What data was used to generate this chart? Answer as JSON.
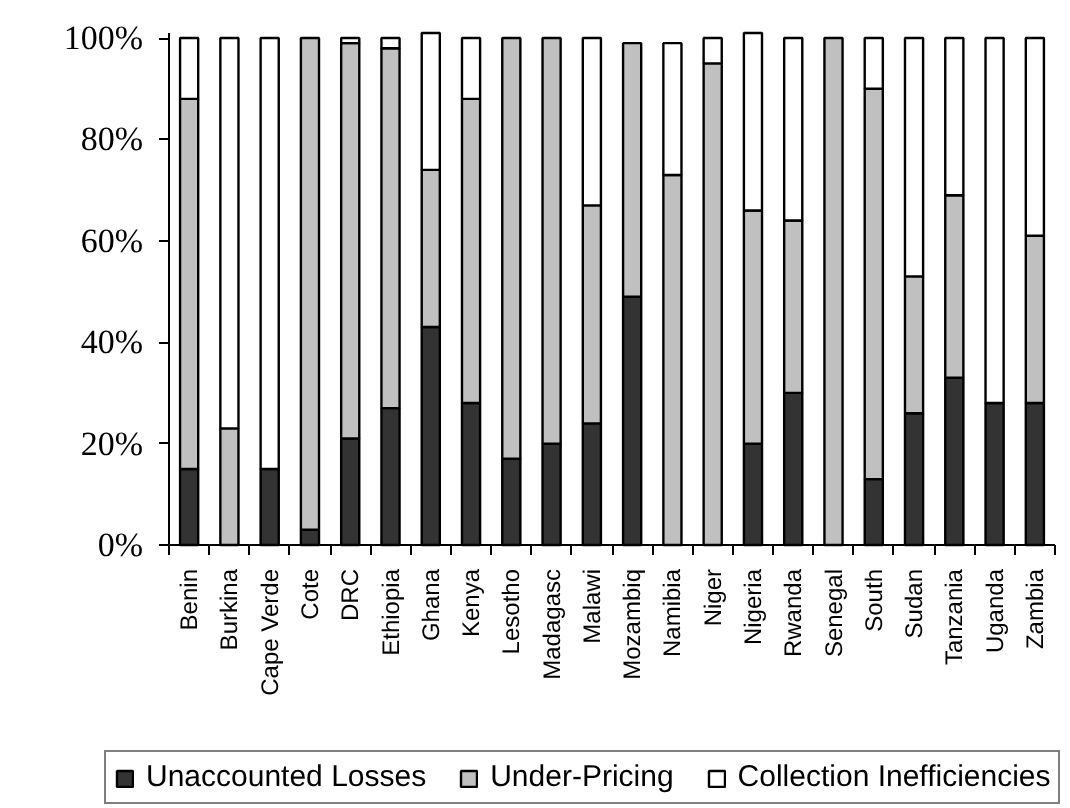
{
  "chart_data": {
    "type": "bar",
    "stacked": true,
    "categories": [
      "Benin",
      "Burkina",
      "Cape Verde",
      "Cote",
      "DRC",
      "Ethiopia",
      "Ghana",
      "Kenya",
      "Lesotho",
      "Madagasc",
      "Malawi",
      "Mozambiq",
      "Namibia",
      "Niger",
      "Nigeria",
      "Rwanda",
      "Senegal",
      "South",
      "Sudan",
      "Tanzania",
      "Uganda",
      "Zambia"
    ],
    "series": [
      {
        "name": "Unaccounted Losses",
        "color": "#333333",
        "values": [
          15,
          0,
          15,
          3,
          21,
          27,
          43,
          28,
          17,
          20,
          24,
          49,
          0,
          0,
          20,
          30,
          0,
          13,
          26,
          33,
          28,
          28
        ]
      },
      {
        "name": "Under-Pricing",
        "color": "#c0c0c0",
        "values": [
          73,
          23,
          0,
          97,
          78,
          71,
          31,
          60,
          83,
          80,
          43,
          50,
          73,
          95,
          46,
          34,
          100,
          77,
          27,
          36,
          0,
          33
        ]
      },
      {
        "name": "Collection Inefficiencies",
        "color": "#ffffff",
        "values": [
          12,
          77,
          85,
          0,
          1,
          2,
          27,
          12,
          0,
          0,
          33,
          0,
          26,
          5,
          35,
          36,
          0,
          10,
          47,
          31,
          72,
          39
        ]
      }
    ],
    "ylim": [
      0,
      101
    ],
    "yticks": [
      {
        "value": 0,
        "label": "0%"
      },
      {
        "value": 20,
        "label": "20%"
      },
      {
        "value": 40,
        "label": "40%"
      },
      {
        "value": 60,
        "label": "60%"
      },
      {
        "value": 80,
        "label": "80%"
      },
      {
        "value": 100,
        "label": "100%"
      }
    ],
    "legend": "bottom"
  }
}
